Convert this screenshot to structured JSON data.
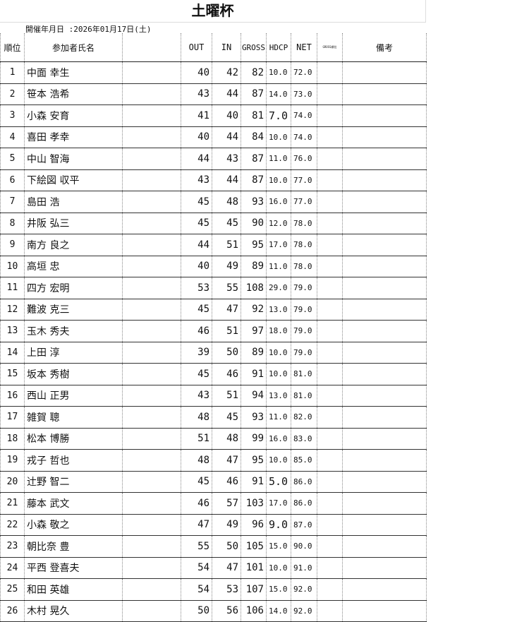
{
  "title": "土曜杯",
  "date_label": "開催年月日 :2026年01月17日(土)",
  "headers": {
    "rank": "順位",
    "name": "参加者氏名",
    "out": "OUT",
    "in": "IN",
    "gross": "GROSS",
    "hdcp": "HDCP",
    "net": "NET",
    "gross_rank": "GROSS順位",
    "remarks": "備考"
  },
  "rows": [
    {
      "rank": "1",
      "name": "中面 幸生",
      "out": "40",
      "in": "42",
      "gross": "82",
      "hdcp": "10.0",
      "net": "72.0"
    },
    {
      "rank": "2",
      "name": "笹本 浩希",
      "out": "43",
      "in": "44",
      "gross": "87",
      "hdcp": "14.0",
      "net": "73.0"
    },
    {
      "rank": "3",
      "name": "小森 安育",
      "out": "41",
      "in": "40",
      "gross": "81",
      "hdcp": "7.0",
      "net": "74.0"
    },
    {
      "rank": "4",
      "name": "喜田 孝幸",
      "out": "40",
      "in": "44",
      "gross": "84",
      "hdcp": "10.0",
      "net": "74.0"
    },
    {
      "rank": "5",
      "name": "中山 智海",
      "out": "44",
      "in": "43",
      "gross": "87",
      "hdcp": "11.0",
      "net": "76.0"
    },
    {
      "rank": "6",
      "name": "下絵図 収平",
      "out": "43",
      "in": "44",
      "gross": "87",
      "hdcp": "10.0",
      "net": "77.0"
    },
    {
      "rank": "7",
      "name": "島田 浩",
      "out": "45",
      "in": "48",
      "gross": "93",
      "hdcp": "16.0",
      "net": "77.0"
    },
    {
      "rank": "8",
      "name": "井阪 弘三",
      "out": "45",
      "in": "45",
      "gross": "90",
      "hdcp": "12.0",
      "net": "78.0"
    },
    {
      "rank": "9",
      "name": "南方 良之",
      "out": "44",
      "in": "51",
      "gross": "95",
      "hdcp": "17.0",
      "net": "78.0"
    },
    {
      "rank": "10",
      "name": "高垣 忠",
      "out": "40",
      "in": "49",
      "gross": "89",
      "hdcp": "11.0",
      "net": "78.0"
    },
    {
      "rank": "11",
      "name": "四方 宏明",
      "out": "53",
      "in": "55",
      "gross": "108",
      "hdcp": "29.0",
      "net": "79.0"
    },
    {
      "rank": "12",
      "name": "難波 克三",
      "out": "45",
      "in": "47",
      "gross": "92",
      "hdcp": "13.0",
      "net": "79.0"
    },
    {
      "rank": "13",
      "name": "玉木 秀夫",
      "out": "46",
      "in": "51",
      "gross": "97",
      "hdcp": "18.0",
      "net": "79.0"
    },
    {
      "rank": "14",
      "name": "上田 淳",
      "out": "39",
      "in": "50",
      "gross": "89",
      "hdcp": "10.0",
      "net": "79.0"
    },
    {
      "rank": "15",
      "name": "坂本 秀樹",
      "out": "45",
      "in": "46",
      "gross": "91",
      "hdcp": "10.0",
      "net": "81.0"
    },
    {
      "rank": "16",
      "name": "西山 正男",
      "out": "43",
      "in": "51",
      "gross": "94",
      "hdcp": "13.0",
      "net": "81.0"
    },
    {
      "rank": "17",
      "name": "雑賀 聰",
      "out": "48",
      "in": "45",
      "gross": "93",
      "hdcp": "11.0",
      "net": "82.0"
    },
    {
      "rank": "18",
      "name": "松本 博勝",
      "out": "51",
      "in": "48",
      "gross": "99",
      "hdcp": "16.0",
      "net": "83.0"
    },
    {
      "rank": "19",
      "name": "戎子 哲也",
      "out": "48",
      "in": "47",
      "gross": "95",
      "hdcp": "10.0",
      "net": "85.0"
    },
    {
      "rank": "20",
      "name": "辻野 智二",
      "out": "45",
      "in": "46",
      "gross": "91",
      "hdcp": "5.0",
      "net": "86.0"
    },
    {
      "rank": "21",
      "name": "藤本 武文",
      "out": "46",
      "in": "57",
      "gross": "103",
      "hdcp": "17.0",
      "net": "86.0"
    },
    {
      "rank": "22",
      "name": "小森 敬之",
      "out": "47",
      "in": "49",
      "gross": "96",
      "hdcp": "9.0",
      "net": "87.0"
    },
    {
      "rank": "23",
      "name": "朝比奈 豊",
      "out": "55",
      "in": "50",
      "gross": "105",
      "hdcp": "15.0",
      "net": "90.0"
    },
    {
      "rank": "24",
      "name": "平西 登喜夫",
      "out": "54",
      "in": "47",
      "gross": "101",
      "hdcp": "10.0",
      "net": "91.0"
    },
    {
      "rank": "25",
      "name": "和田 英雄",
      "out": "54",
      "in": "53",
      "gross": "107",
      "hdcp": "15.0",
      "net": "92.0"
    },
    {
      "rank": "26",
      "name": "木村 晃久",
      "out": "50",
      "in": "56",
      "gross": "106",
      "hdcp": "14.0",
      "net": "92.0"
    }
  ]
}
